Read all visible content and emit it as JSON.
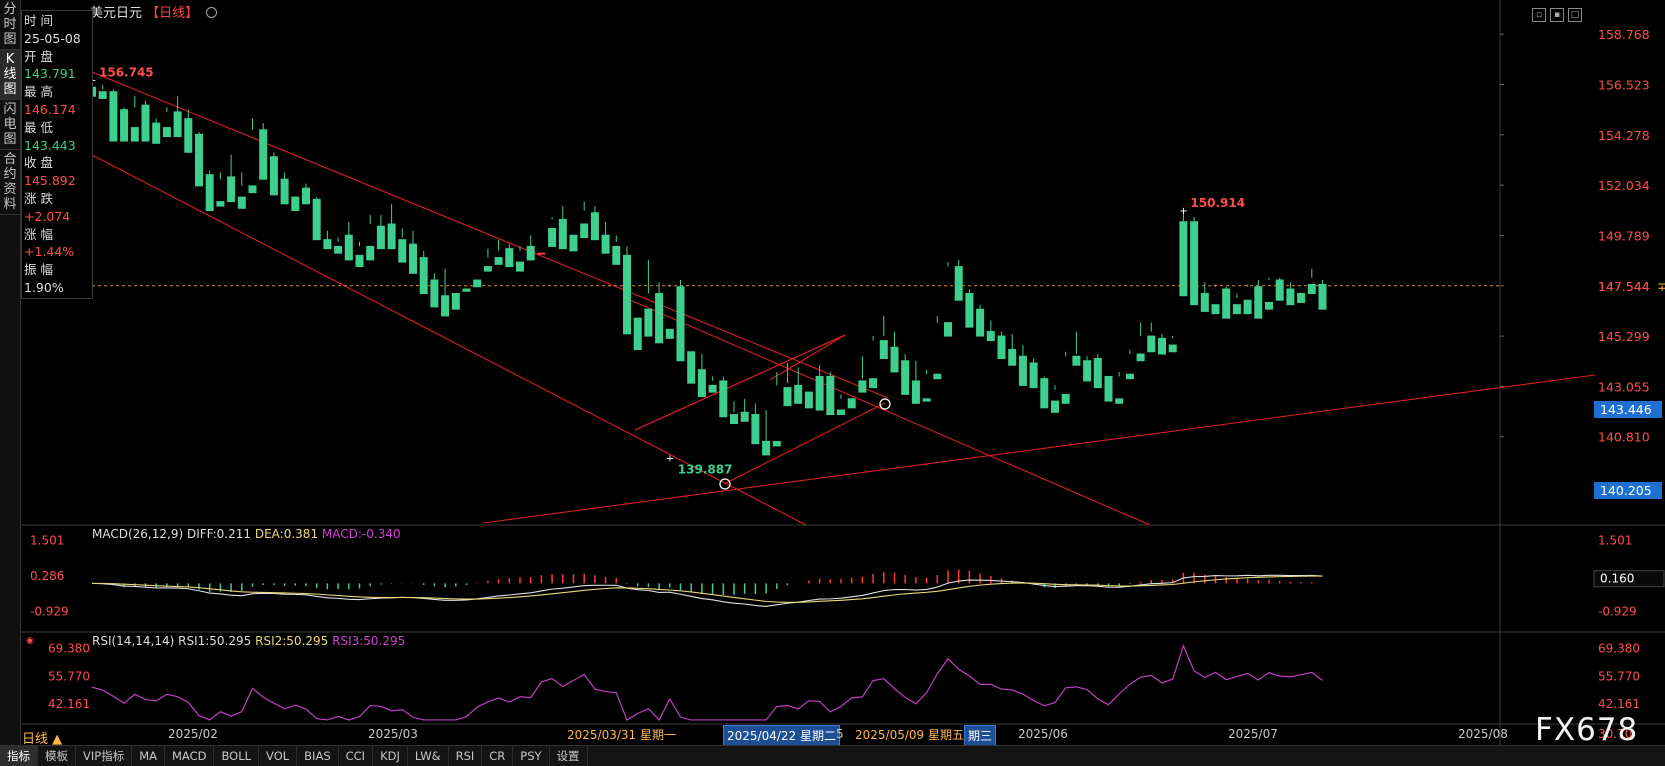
{
  "left_tabs": [
    "分时图",
    "K线图",
    "闪电图",
    "合约资料"
  ],
  "info_panel": {
    "time_label": "时 间",
    "time_value": "25-05-08",
    "open_label": "开 盘",
    "open_value": "143.791",
    "high_label": "最 高",
    "high_value": "146.174",
    "low_label": "最 低",
    "low_value": "143.443",
    "close_label": "收 盘",
    "close_value": "145.892",
    "change_label": "涨 跌",
    "change_value": "+2.074",
    "pct_label": "涨 幅",
    "pct_value": "+1.44%",
    "amp_label": "振 幅",
    "amp_value": "1.90%"
  },
  "title": {
    "name": "美元日元",
    "period": "【日线】"
  },
  "macd_header": {
    "label": "MACD(26,12,9)",
    "diff": "DIFF:0.211",
    "dea": "DEA:0.381",
    "macd": "MACD:-0.340"
  },
  "rsi_header": {
    "label": "RSI(14,14,14)",
    "rsi1": "RSI1:50.295",
    "rsi2": "RSI2:50.295",
    "rsi3": "RSI3:50.295"
  },
  "dates": {
    "feb": "2025/02",
    "mar": "2025/03",
    "apr1": "2025/03/31 星期一",
    "apr2": "2025/04/22 星期二",
    "apr2_tail": "5",
    "may": "2025/05/09 星期五",
    "may_tail": "期三",
    "jun": "2025/06",
    "jul": "2025/07",
    "aug": "2025/08"
  },
  "period_label": "日线 ▲",
  "bottom_tabs": [
    "指标",
    "模板",
    "VIP指标",
    "MA",
    "MACD",
    "BOLL",
    "VOL",
    "BIAS",
    "CCI",
    "KDJ",
    "LW&",
    "RSI",
    "CR",
    "PSY",
    "设置"
  ],
  "watermark": "FX678",
  "colors": {
    "up": "#ff3b3b",
    "down": "#3ecf8e",
    "line": "#d62020",
    "accent_blue": "#1f6fd1",
    "dea": "#e8d77a",
    "rsi": "#c040c0"
  },
  "chart_data": {
    "type": "candlestick",
    "price_axis": {
      "ticks": [
        158.768,
        156.523,
        154.278,
        152.034,
        149.789,
        147.544,
        145.299,
        143.055,
        140.81
      ],
      "labels": [
        "158.768",
        "156.523",
        "154.278",
        "152.034",
        "149.789",
        "147.544",
        "145.299",
        "143.055",
        "140.810"
      ],
      "ylim": [
        138.3,
        159.4
      ]
    },
    "price_markers": {
      "current": "147.544",
      "crosshair": "143.446",
      "lower": "140.205"
    },
    "annotations": [
      {
        "text": "156.745",
        "value": 156.745,
        "index": 0
      },
      {
        "text": "150.914",
        "value": 150.914,
        "index": 102
      },
      {
        "text": "139.887",
        "value": 139.887,
        "index": 54
      }
    ],
    "candles": [
      [
        156.4,
        156.9,
        156.7,
        156
      ],
      [
        156.2,
        156.5,
        156.3,
        155.9
      ],
      [
        156.2,
        156.3,
        155.5,
        154
      ],
      [
        155.4,
        155.5,
        154.5,
        154
      ],
      [
        154.6,
        156,
        155.5,
        154
      ],
      [
        155.6,
        155.8,
        154.8,
        154
      ],
      [
        154.8,
        155,
        154.6,
        153.9
      ],
      [
        154.6,
        155.5,
        155.3,
        154.2
      ],
      [
        155.3,
        156,
        155,
        154.2
      ],
      [
        155,
        155.4,
        154.3,
        153.5
      ],
      [
        154.3,
        154.4,
        152.4,
        152
      ],
      [
        152.5,
        152.7,
        151.4,
        150.9
      ],
      [
        151.3,
        152.6,
        152.3,
        151.1
      ],
      [
        152.4,
        153.4,
        151.6,
        151.3
      ],
      [
        151.5,
        152.6,
        152,
        151
      ],
      [
        152,
        155,
        154.5,
        151.7
      ],
      [
        154.5,
        154.8,
        153.3,
        152.3
      ],
      [
        153.3,
        153.5,
        152.4,
        151.6
      ],
      [
        152.3,
        152.6,
        151.5,
        151.2
      ],
      [
        151.5,
        151.9,
        151.9,
        150.9
      ],
      [
        151.9,
        152.1,
        151.3,
        151.2
      ],
      [
        151.4,
        151.5,
        149.7,
        149.6
      ],
      [
        149.6,
        150,
        149.3,
        149.2
      ],
      [
        149.3,
        149.5,
        149.7,
        149
      ],
      [
        149.8,
        150.4,
        148.9,
        148.7
      ],
      [
        148.9,
        149.5,
        149.3,
        148.4
      ],
      [
        149.3,
        150.7,
        150.3,
        148.7
      ],
      [
        150.2,
        150.7,
        150.2,
        149.2
      ],
      [
        150.3,
        151.2,
        149.6,
        149.2
      ],
      [
        149.6,
        150.1,
        149.7,
        148.6
      ],
      [
        149.4,
        150,
        148.7,
        148.1
      ],
      [
        148.8,
        149.1,
        147.8,
        147.2
      ],
      [
        147.8,
        148.1,
        147.1,
        146.6
      ],
      [
        147.1,
        148.3,
        146.8,
        146.2
      ],
      [
        147.2,
        147.4,
        147.4,
        146.5
      ],
      [
        147.4,
        147.7,
        147.7,
        147.3
      ],
      [
        147.8,
        148.4,
        148.4,
        147.5
      ],
      [
        148.4,
        149.2,
        148.8,
        148.2
      ],
      [
        148.8,
        149.6,
        149.1,
        148.5
      ],
      [
        149.2,
        149.4,
        148.7,
        148.4
      ],
      [
        148.6,
        149.3,
        149.1,
        148.2
      ],
      [
        149.3,
        149.8,
        149,
        148.7
      ],
      [
        149,
        150.2,
        150.2,
        149
      ],
      [
        150.1,
        150.6,
        150.5,
        149.3
      ],
      [
        150.5,
        151.1,
        149.9,
        149.2
      ],
      [
        149.8,
        150.4,
        150.4,
        149.1
      ],
      [
        150.3,
        151.3,
        150.9,
        149.7
      ],
      [
        150.8,
        151.1,
        149.8,
        149.6
      ],
      [
        149.8,
        150.4,
        149.6,
        149
      ],
      [
        149.3,
        149.8,
        149.5,
        148.5
      ],
      [
        148.9,
        149.3,
        145.9,
        145.4
      ],
      [
        146.1,
        146.8,
        146.8,
        144.7
      ],
      [
        146.5,
        148.7,
        147.2,
        145.3
      ],
      [
        147.2,
        147.7,
        145.5,
        145
      ],
      [
        145.6,
        147.6,
        147.5,
        145.2
      ],
      [
        147.5,
        147.8,
        144.6,
        144.2
      ],
      [
        144.6,
        144.6,
        143.8,
        143.2
      ],
      [
        143.8,
        144.5,
        143.1,
        142.6
      ],
      [
        143.1,
        143.5,
        143.3,
        142.8
      ],
      [
        143.3,
        143.5,
        141.9,
        141.7
      ],
      [
        141.8,
        142.4,
        141.9,
        141.4
      ],
      [
        141.9,
        142.5,
        141.9,
        141.5
      ],
      [
        141.8,
        142.3,
        140.6,
        140.5
      ],
      [
        140.6,
        142,
        140.5,
        140
      ],
      [
        140.6,
        143.7,
        143.1,
        140.4
      ],
      [
        143,
        144.1,
        143.2,
        142.2
      ],
      [
        143.1,
        143.9,
        142.7,
        142.3
      ],
      [
        142.8,
        143.5,
        143.5,
        142.1
      ],
      [
        143.5,
        144,
        143.4,
        142
      ],
      [
        143.5,
        143.7,
        142,
        141.8
      ],
      [
        142,
        142.7,
        142.5,
        141.8
      ],
      [
        142.5,
        143.3,
        143.3,
        142.1
      ],
      [
        143.3,
        144.4,
        143.4,
        142.8
      ],
      [
        143.4,
        145.3,
        145.1,
        143
      ],
      [
        145.1,
        146.2,
        145.3,
        144.3
      ],
      [
        144.8,
        145.5,
        144.3,
        143.7
      ],
      [
        144.2,
        144.5,
        143.3,
        142.7
      ],
      [
        143.3,
        144.2,
        142.5,
        142.3
      ],
      [
        142.5,
        143.8,
        143.6,
        142.4
      ],
      [
        143.6,
        146.2,
        145.9,
        143.4
      ],
      [
        145.9,
        148.6,
        148.4,
        145.3
      ],
      [
        148.4,
        148.7,
        147.2,
        146.9
      ],
      [
        147.2,
        147.4,
        146.4,
        145.7
      ],
      [
        146.5,
        146.7,
        145.3,
        145.3
      ],
      [
        145.5,
        146,
        145.3,
        145.1
      ],
      [
        145.3,
        145.5,
        144.7,
        144.3
      ],
      [
        144.7,
        145.4,
        144.6,
        144
      ],
      [
        144.4,
        144.9,
        144.1,
        143.1
      ],
      [
        144.1,
        144.3,
        143.3,
        143
      ],
      [
        143.4,
        143.5,
        142.6,
        142.1
      ],
      [
        142.4,
        143.1,
        142.9,
        141.9
      ],
      [
        142.7,
        144.6,
        144.4,
        142.3
      ],
      [
        144.4,
        145.5,
        144.5,
        144
      ],
      [
        144.2,
        144.4,
        144.2,
        143.3
      ],
      [
        144.3,
        144.5,
        143.2,
        143
      ],
      [
        143.5,
        143.5,
        142.5,
        142.4
      ],
      [
        142.5,
        143.7,
        143.5,
        142.3
      ],
      [
        143.6,
        144.7,
        144.5,
        143.4
      ],
      [
        144.5,
        145.9,
        145.3,
        144.2
      ],
      [
        145.3,
        145.9,
        145.5,
        144.6
      ],
      [
        145.2,
        145.4,
        144.8,
        144.5
      ],
      [
        144.9,
        145.3,
        145.2,
        144.6
      ],
      [
        150.4,
        151,
        150.4,
        147.1
      ],
      [
        150.4,
        150.6,
        147.5,
        146.7
      ],
      [
        147.2,
        147.7,
        146.6,
        146.4
      ],
      [
        146.7,
        147.6,
        147.5,
        146.3
      ],
      [
        147.4,
        147.5,
        146.5,
        146.1
      ],
      [
        146.7,
        147.2,
        147,
        146.3
      ],
      [
        146.9,
        147.6,
        147.5,
        146.3
      ],
      [
        147.5,
        147.8,
        146.7,
        146.1
      ],
      [
        146.8,
        147.9,
        147.8,
        146.5
      ],
      [
        147.8,
        147.9,
        147.4,
        146.9
      ],
      [
        147.4,
        147.7,
        147.3,
        146.7
      ],
      [
        147.2,
        147.6,
        147.6,
        146.8
      ],
      [
        147.6,
        148.3,
        147.9,
        147.2
      ],
      [
        147.6,
        147.8,
        147.1,
        146.5
      ]
    ],
    "macd": {
      "ylim": [
        -1.6,
        1.9
      ],
      "ticks": [
        1.501,
        0.286,
        -0.929
      ],
      "labels": [
        "1.501",
        "0.286",
        "-0.929"
      ],
      "diff_label": "0.160"
    },
    "rsi": {
      "ylim": [
        33,
        73
      ],
      "ticks": [
        69.38,
        55.77,
        42.161
      ],
      "labels": [
        "69.380",
        "55.770",
        "42.161"
      ],
      "bottom_label": "30.70"
    }
  }
}
